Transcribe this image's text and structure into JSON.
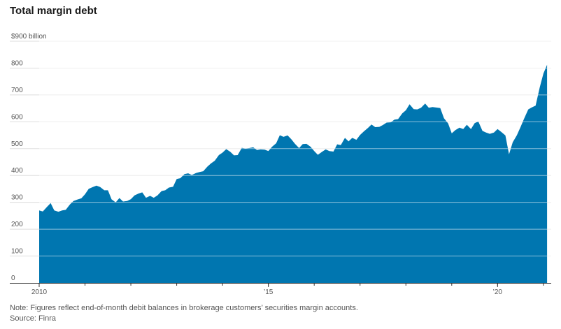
{
  "title": "Total margin debt",
  "note": "Note: Figures reflect end-of-month debit balances in brokerage customers’ securities margin accounts.",
  "source": "Source: Finra",
  "colors": {
    "area": "#0076B0",
    "grid": "#dddddd",
    "axis": "#333333",
    "label": "#555555"
  },
  "chart_data": {
    "type": "area",
    "title": "Total margin debt",
    "y_unit_label": "$900 billion",
    "ylim": [
      0,
      900
    ],
    "yticks": [
      0,
      100,
      200,
      300,
      400,
      500,
      600,
      700,
      800,
      900
    ],
    "ytick_labels": [
      "0",
      "100",
      "200",
      "300",
      "400",
      "500",
      "600",
      "700",
      "800",
      "$900 billion"
    ],
    "xlim": [
      2010.0,
      2021.17
    ],
    "xticks": [
      {
        "x": 2010,
        "label": "2010"
      },
      {
        "x": 2015,
        "label": "’15"
      },
      {
        "x": 2020,
        "label": "’20"
      }
    ],
    "grid": true,
    "series": [
      {
        "x": [
          2010.0,
          2010.08,
          2010.17,
          2010.25,
          2010.33,
          2010.42,
          2010.5,
          2010.58,
          2010.67,
          2010.75,
          2010.83,
          2010.92,
          2011.0,
          2011.08,
          2011.17,
          2011.25,
          2011.33,
          2011.42,
          2011.5,
          2011.58,
          2011.67,
          2011.75,
          2011.83,
          2011.92,
          2012.0,
          2012.08,
          2012.17,
          2012.25,
          2012.33,
          2012.42,
          2012.5,
          2012.58,
          2012.67,
          2012.75,
          2012.83,
          2012.92,
          2013.0,
          2013.08,
          2013.17,
          2013.25,
          2013.33,
          2013.42,
          2013.5,
          2013.58,
          2013.67,
          2013.75,
          2013.83,
          2013.92,
          2014.0,
          2014.08,
          2014.17,
          2014.25,
          2014.33,
          2014.42,
          2014.5,
          2014.58,
          2014.67,
          2014.75,
          2014.83,
          2014.92,
          2015.0,
          2015.08,
          2015.17,
          2015.25,
          2015.33,
          2015.42,
          2015.5,
          2015.58,
          2015.67,
          2015.75,
          2015.83,
          2015.92,
          2016.0,
          2016.08,
          2016.17,
          2016.25,
          2016.33,
          2016.42,
          2016.5,
          2016.58,
          2016.67,
          2016.75,
          2016.83,
          2016.92,
          2017.0,
          2017.08,
          2017.17,
          2017.25,
          2017.33,
          2017.42,
          2017.5,
          2017.58,
          2017.67,
          2017.75,
          2017.83,
          2017.92,
          2018.0,
          2018.08,
          2018.17,
          2018.25,
          2018.33,
          2018.42,
          2018.5,
          2018.58,
          2018.67,
          2018.75,
          2018.83,
          2018.92,
          2019.0,
          2019.08,
          2019.17,
          2019.25,
          2019.33,
          2019.42,
          2019.5,
          2019.58,
          2019.67,
          2019.75,
          2019.83,
          2019.92,
          2020.0,
          2020.08,
          2020.17,
          2020.25,
          2020.33,
          2020.42,
          2020.5,
          2020.58,
          2020.67,
          2020.75,
          2020.83,
          2020.92,
          2021.0,
          2021.08
        ],
        "values": [
          270,
          266,
          283,
          297,
          270,
          265,
          270,
          272,
          292,
          305,
          310,
          315,
          330,
          350,
          357,
          362,
          357,
          345,
          345,
          311,
          300,
          316,
          303,
          305,
          312,
          326,
          333,
          337,
          317,
          324,
          317,
          326,
          342,
          345,
          355,
          358,
          387,
          390,
          405,
          408,
          402,
          409,
          413,
          416,
          433,
          445,
          455,
          476,
          485,
          498,
          488,
          475,
          476,
          503,
          500,
          502,
          505,
          495,
          497,
          496,
          491,
          507,
          520,
          550,
          544,
          549,
          535,
          518,
          502,
          517,
          518,
          507,
          491,
          477,
          488,
          497,
          491,
          489,
          516,
          513,
          540,
          527,
          540,
          533,
          551,
          564,
          577,
          590,
          580,
          581,
          588,
          597,
          598,
          608,
          610,
          631,
          643,
          665,
          647,
          646,
          652,
          668,
          652,
          655,
          653,
          651,
          613,
          594,
          557,
          569,
          578,
          573,
          589,
          573,
          595,
          601,
          566,
          560,
          555,
          560,
          573,
          562,
          549,
          479,
          524,
          550,
          580,
          612,
          646,
          654,
          660,
          728,
          780,
          812
        ]
      }
    ]
  }
}
